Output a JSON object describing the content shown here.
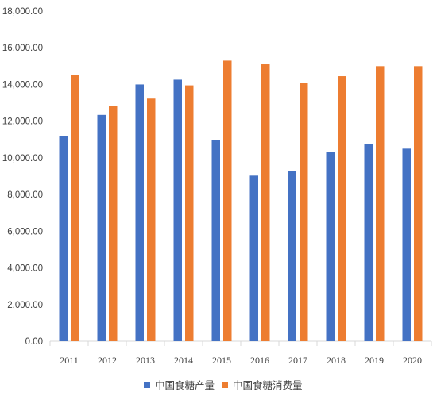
{
  "chart_data": {
    "type": "bar",
    "categories": [
      "2011",
      "2012",
      "2013",
      "2014",
      "2015",
      "2016",
      "2017",
      "2018",
      "2019",
      "2020"
    ],
    "series": [
      {
        "name": "中国食糖产量",
        "color": "#4472C4",
        "values": [
          11200,
          12340,
          14000,
          14260,
          10990,
          9030,
          9290,
          10310,
          10760,
          10500
        ]
      },
      {
        "name": "中国食糖消费量",
        "color": "#ED7D31",
        "values": [
          14500,
          12850,
          13230,
          13950,
          15300,
          15100,
          14100,
          14450,
          15000,
          15000
        ]
      }
    ],
    "yticks": [
      "0.00",
      "2,000.00",
      "4,000.00",
      "6,000.00",
      "8,000.00",
      "10,000.00",
      "12,000.00",
      "14,000.00",
      "16,000.00",
      "18,000.00"
    ],
    "ylim": [
      0,
      18000
    ],
    "title": "",
    "xlabel": "",
    "ylabel": "",
    "grid": false,
    "legend_position": "bottom"
  }
}
